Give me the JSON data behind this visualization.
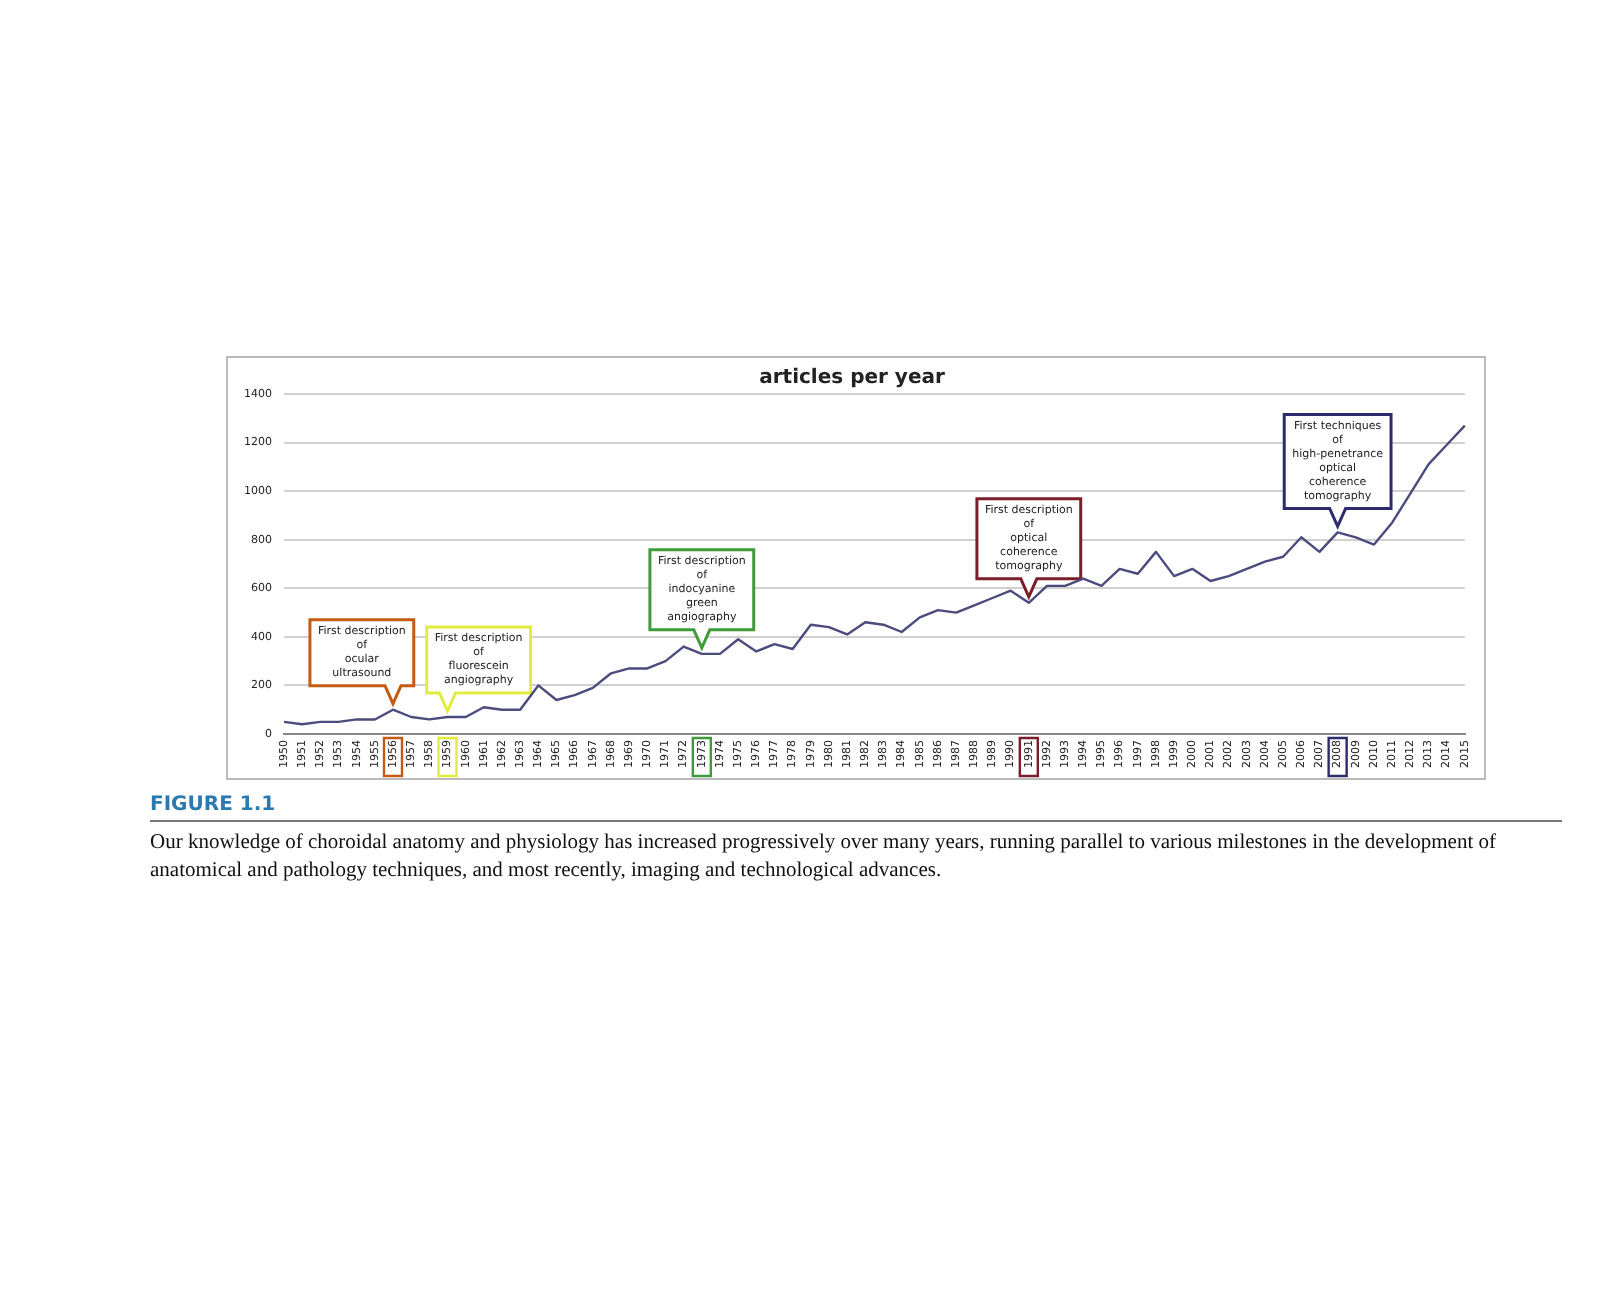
{
  "chart_data": {
    "type": "line",
    "title": "articles per year",
    "categories": [
      "1950",
      "1951",
      "1952",
      "1953",
      "1954",
      "1955",
      "1956",
      "1957",
      "1958",
      "1959",
      "1960",
      "1961",
      "1962",
      "1963",
      "1964",
      "1965",
      "1966",
      "1967",
      "1968",
      "1969",
      "1970",
      "1971",
      "1972",
      "1973",
      "1974",
      "1975",
      "1976",
      "1977",
      "1978",
      "1979",
      "1980",
      "1981",
      "1982",
      "1983",
      "1984",
      "1985",
      "1986",
      "1987",
      "1988",
      "1989",
      "1990",
      "1991",
      "1992",
      "1993",
      "1994",
      "1995",
      "1996",
      "1997",
      "1998",
      "1999",
      "2000",
      "2001",
      "2002",
      "2003",
      "2004",
      "2005",
      "2006",
      "2007",
      "2008",
      "2009",
      "2010",
      "2011",
      "2012",
      "2013",
      "2014",
      "2015"
    ],
    "series": [
      {
        "color": "#4b4b7d",
        "values": [
          50,
          40,
          50,
          50,
          60,
          60,
          100,
          70,
          60,
          70,
          70,
          110,
          100,
          100,
          200,
          140,
          160,
          190,
          250,
          270,
          270,
          300,
          360,
          330,
          330,
          390,
          340,
          370,
          350,
          450,
          440,
          410,
          460,
          450,
          420,
          480,
          510,
          500,
          530,
          560,
          590,
          540,
          610,
          610,
          640,
          610,
          680,
          660,
          750,
          650,
          680,
          630,
          650,
          680,
          710,
          730,
          810,
          750,
          830,
          810,
          780,
          870,
          990,
          1110,
          1190,
          1270
        ]
      }
    ],
    "ylim": [
      0,
      1400
    ],
    "yticks": [
      0,
      200,
      400,
      600,
      800,
      1000,
      1200,
      1400
    ],
    "grid": "y",
    "legend": false,
    "marker": "none",
    "line_style": "solid",
    "annotations": [
      {
        "text": "First description\nof\nocular\nultrasound",
        "x": "1956",
        "y": 100
      },
      {
        "text": "First description\nof\nfluorescein\nangiography",
        "x": "1959",
        "y": 70
      },
      {
        "text": "First description\nof\nindocyanine\ngreen\nangiography",
        "x": "1973",
        "y": 330
      },
      {
        "text": "First description\nof\noptical\ncoherence\ntomography",
        "x": "1991",
        "y": 540
      },
      {
        "text": "First techniques\nof\nhigh-penetrance\noptical\ncoherence\ntomography",
        "x": "2008",
        "y": 830
      },
      "FIGURE 1.1",
      "Our knowledge of choroidal anatomy and physiology has increased progressively over many years, running parallel to various milestones in the development of anatomical and pathology techniques, and most recently, imaging and technological advances."
    ]
  }
}
